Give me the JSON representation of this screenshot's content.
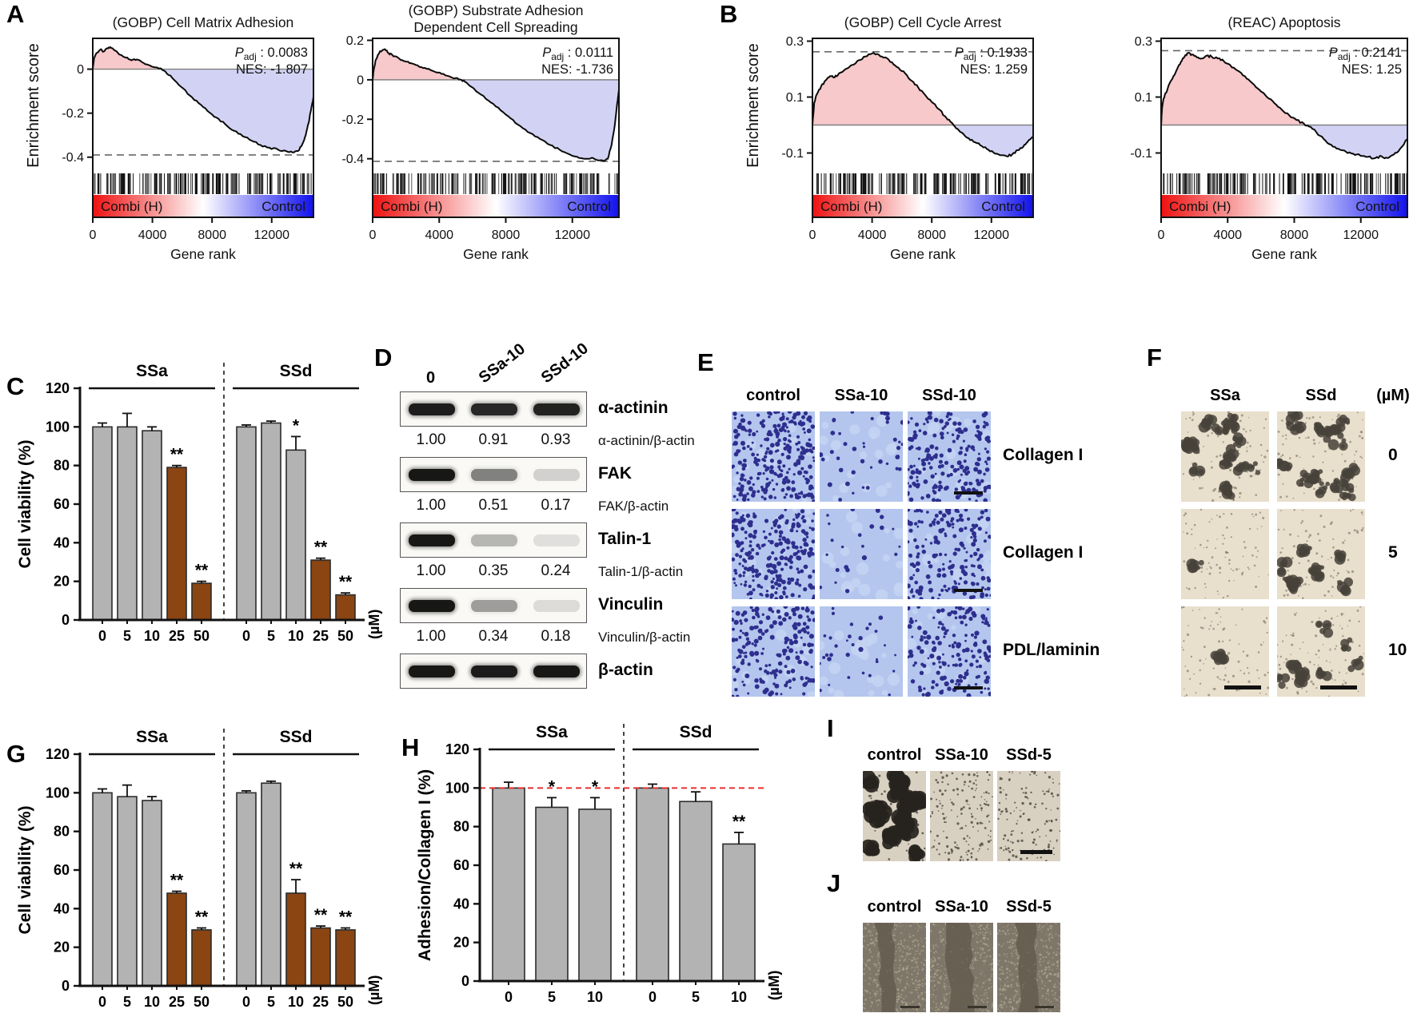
{
  "letters": {
    "A": "A",
    "B": "B",
    "C": "C",
    "D": "D",
    "E": "E",
    "F": "F",
    "G": "G",
    "H": "H",
    "I": "I",
    "J": "J"
  },
  "colors": {
    "gray_bar": "#b3b3b3",
    "brown_bar": "#8a4513",
    "bar_stroke": "#2b2b2b",
    "ref_red": "#e83030",
    "gsea_pos_fill": "#f7c9cb",
    "gsea_neg_fill": "#d2d3f4",
    "grad_red": "#ee1111",
    "grad_blue": "#1111ee",
    "e_bg": "#b4c6ee",
    "e_dot": "#2e2e8e",
    "f_bg": "#e8dfcc",
    "f_clump": "#46423a",
    "i_bg": "#d8d1c2",
    "i_blob": "#26231d",
    "i_speck": "#4a453b",
    "j_bg": "#7e7769",
    "j_band": "#665f52",
    "j_speck": "#b6ad98"
  },
  "gsea_common": {
    "ylabel": "Enrichment score",
    "xlabel": "Gene rank",
    "band_left": "Combi (H)",
    "band_right": "Control",
    "xticks": [
      "0",
      "4000",
      "8000",
      "12000"
    ],
    "xtick_values": [
      0,
      4000,
      8000,
      12000
    ],
    "xmax": 14800,
    "padj_label": "P",
    "padj_sub": "adj"
  },
  "chart_data": [
    {
      "id": "gsea-a1",
      "type": "line",
      "panel": "A",
      "title_lines": [
        "(GOBP) Cell Matrix Adhesion"
      ],
      "padj_value": " : 0.0083",
      "nes_text": "NES: -1.807",
      "has_ylabel": true,
      "seed": 11,
      "yticks": [
        0,
        -0.2,
        -0.4
      ],
      "ylim": [
        -0.47,
        0.14
      ],
      "dashed_y": -0.39,
      "curve": [
        [
          0,
          0
        ],
        [
          0.006,
          0.05
        ],
        [
          0.02,
          0.075
        ],
        [
          0.035,
          0.09
        ],
        [
          0.05,
          0.08
        ],
        [
          0.065,
          0.095
        ],
        [
          0.08,
          0.1
        ],
        [
          0.1,
          0.085
        ],
        [
          0.125,
          0.065
        ],
        [
          0.15,
          0.052
        ],
        [
          0.175,
          0.04
        ],
        [
          0.2,
          0.044
        ],
        [
          0.23,
          0.028
        ],
        [
          0.26,
          0.016
        ],
        [
          0.29,
          0.008
        ],
        [
          0.31,
          0.002
        ],
        [
          0.33,
          -0.012
        ],
        [
          0.36,
          -0.04
        ],
        [
          0.4,
          -0.08
        ],
        [
          0.44,
          -0.12
        ],
        [
          0.48,
          -0.155
        ],
        [
          0.52,
          -0.19
        ],
        [
          0.56,
          -0.22
        ],
        [
          0.6,
          -0.25
        ],
        [
          0.64,
          -0.28
        ],
        [
          0.68,
          -0.305
        ],
        [
          0.72,
          -0.325
        ],
        [
          0.76,
          -0.345
        ],
        [
          0.8,
          -0.357
        ],
        [
          0.84,
          -0.366
        ],
        [
          0.875,
          -0.372
        ],
        [
          0.905,
          -0.378
        ],
        [
          0.93,
          -0.372
        ],
        [
          0.95,
          -0.34
        ],
        [
          0.965,
          -0.3
        ],
        [
          0.978,
          -0.245
        ],
        [
          0.988,
          -0.19
        ],
        [
          1,
          -0.125
        ]
      ]
    },
    {
      "id": "gsea-a2",
      "type": "line",
      "panel": "A",
      "title_lines": [
        "(GOBP) Substrate Adhesion",
        "Dependent Cell Spreading"
      ],
      "padj_value": " : 0.0111",
      "nes_text": "NES: -1.736",
      "has_ylabel": false,
      "seed": 22,
      "yticks": [
        0.2,
        0,
        -0.2,
        -0.4
      ],
      "ylim": [
        -0.47,
        0.21
      ],
      "dashed_y": -0.413,
      "curve": [
        [
          0,
          0
        ],
        [
          0.004,
          0.045
        ],
        [
          0.012,
          0.1
        ],
        [
          0.03,
          0.145
        ],
        [
          0.05,
          0.155
        ],
        [
          0.065,
          0.135
        ],
        [
          0.08,
          0.125
        ],
        [
          0.1,
          0.115
        ],
        [
          0.12,
          0.1
        ],
        [
          0.14,
          0.092
        ],
        [
          0.16,
          0.082
        ],
        [
          0.19,
          0.065
        ],
        [
          0.22,
          0.055
        ],
        [
          0.25,
          0.042
        ],
        [
          0.28,
          0.03
        ],
        [
          0.31,
          0.018
        ],
        [
          0.335,
          0.008
        ],
        [
          0.355,
          0.002
        ],
        [
          0.375,
          -0.01
        ],
        [
          0.4,
          -0.035
        ],
        [
          0.44,
          -0.075
        ],
        [
          0.48,
          -0.115
        ],
        [
          0.52,
          -0.155
        ],
        [
          0.56,
          -0.195
        ],
        [
          0.6,
          -0.235
        ],
        [
          0.64,
          -0.27
        ],
        [
          0.68,
          -0.3
        ],
        [
          0.72,
          -0.33
        ],
        [
          0.76,
          -0.355
        ],
        [
          0.8,
          -0.378
        ],
        [
          0.83,
          -0.39
        ],
        [
          0.86,
          -0.4
        ],
        [
          0.89,
          -0.395
        ],
        [
          0.915,
          -0.408
        ],
        [
          0.94,
          -0.412
        ],
        [
          0.955,
          -0.4
        ],
        [
          0.97,
          -0.33
        ],
        [
          0.983,
          -0.23
        ],
        [
          0.993,
          -0.12
        ],
        [
          1,
          -0.05
        ]
      ]
    },
    {
      "id": "gsea-b1",
      "type": "line",
      "panel": "B",
      "title_lines": [
        "(GOBP) Cell Cycle Arrest"
      ],
      "padj_value": " : 0.1933",
      "nes_text": "NES: 1.259",
      "has_ylabel": true,
      "seed": 33,
      "yticks": [
        0.3,
        0.1,
        -0.1
      ],
      "ylim": [
        -0.17,
        0.31
      ],
      "dashed_y": 0.262,
      "curve": [
        [
          0,
          0
        ],
        [
          0.008,
          0.08
        ],
        [
          0.02,
          0.11
        ],
        [
          0.04,
          0.14
        ],
        [
          0.06,
          0.16
        ],
        [
          0.08,
          0.175
        ],
        [
          0.1,
          0.17
        ],
        [
          0.12,
          0.185
        ],
        [
          0.15,
          0.2
        ],
        [
          0.18,
          0.215
        ],
        [
          0.21,
          0.232
        ],
        [
          0.24,
          0.245
        ],
        [
          0.27,
          0.256
        ],
        [
          0.3,
          0.252
        ],
        [
          0.33,
          0.242
        ],
        [
          0.36,
          0.225
        ],
        [
          0.39,
          0.205
        ],
        [
          0.42,
          0.185
        ],
        [
          0.45,
          0.158
        ],
        [
          0.48,
          0.133
        ],
        [
          0.51,
          0.108
        ],
        [
          0.54,
          0.083
        ],
        [
          0.57,
          0.058
        ],
        [
          0.6,
          0.032
        ],
        [
          0.625,
          0.012
        ],
        [
          0.645,
          -0.005
        ],
        [
          0.67,
          -0.025
        ],
        [
          0.7,
          -0.045
        ],
        [
          0.73,
          -0.06
        ],
        [
          0.76,
          -0.072
        ],
        [
          0.79,
          -0.085
        ],
        [
          0.82,
          -0.098
        ],
        [
          0.85,
          -0.108
        ],
        [
          0.88,
          -0.112
        ],
        [
          0.905,
          -0.105
        ],
        [
          0.93,
          -0.09
        ],
        [
          0.955,
          -0.078
        ],
        [
          0.975,
          -0.06
        ],
        [
          1,
          -0.042
        ]
      ]
    },
    {
      "id": "gsea-b2",
      "type": "line",
      "panel": "B",
      "title_lines": [
        "(REAC) Apoptosis"
      ],
      "padj_value": " : 0.2141",
      "nes_text": "NES: 1.25",
      "has_ylabel": false,
      "seed": 44,
      "yticks": [
        0.3,
        0.1,
        -0.1
      ],
      "ylim": [
        -0.17,
        0.31
      ],
      "dashed_y": 0.266,
      "curve": [
        [
          0,
          0
        ],
        [
          0.004,
          0.06
        ],
        [
          0.01,
          0.095
        ],
        [
          0.02,
          0.115
        ],
        [
          0.035,
          0.15
        ],
        [
          0.05,
          0.175
        ],
        [
          0.065,
          0.2
        ],
        [
          0.08,
          0.225
        ],
        [
          0.095,
          0.245
        ],
        [
          0.11,
          0.258
        ],
        [
          0.125,
          0.252
        ],
        [
          0.145,
          0.242
        ],
        [
          0.165,
          0.238
        ],
        [
          0.185,
          0.248
        ],
        [
          0.205,
          0.245
        ],
        [
          0.23,
          0.238
        ],
        [
          0.255,
          0.228
        ],
        [
          0.28,
          0.215
        ],
        [
          0.31,
          0.195
        ],
        [
          0.34,
          0.175
        ],
        [
          0.37,
          0.15
        ],
        [
          0.4,
          0.125
        ],
        [
          0.43,
          0.1
        ],
        [
          0.46,
          0.078
        ],
        [
          0.49,
          0.055
        ],
        [
          0.52,
          0.035
        ],
        [
          0.55,
          0.018
        ],
        [
          0.58,
          0.005
        ],
        [
          0.6,
          -0.005
        ],
        [
          0.63,
          -0.025
        ],
        [
          0.66,
          -0.05
        ],
        [
          0.69,
          -0.07
        ],
        [
          0.72,
          -0.085
        ],
        [
          0.75,
          -0.095
        ],
        [
          0.78,
          -0.103
        ],
        [
          0.81,
          -0.11
        ],
        [
          0.84,
          -0.114
        ],
        [
          0.87,
          -0.118
        ],
        [
          0.895,
          -0.112
        ],
        [
          0.92,
          -0.118
        ],
        [
          0.945,
          -0.105
        ],
        [
          0.97,
          -0.085
        ],
        [
          1,
          -0.05
        ]
      ]
    },
    {
      "id": "bar-c",
      "type": "bar",
      "panel": "C",
      "ylabel": "Cell viability (%)",
      "ylim": [
        0,
        120
      ],
      "yticks": [
        0,
        20,
        40,
        60,
        80,
        100,
        120
      ],
      "unit": "(µM)",
      "bars_per_group": 5,
      "groups": [
        {
          "name": "SSa",
          "categories": [
            "0",
            "5",
            "10",
            "25",
            "50"
          ],
          "values": [
            100,
            100,
            98,
            79,
            19
          ],
          "errors": [
            2,
            7,
            2,
            1,
            1
          ],
          "sig": [
            "",
            "",
            "",
            "**",
            "**"
          ],
          "brown": [
            false,
            false,
            false,
            true,
            true
          ]
        },
        {
          "name": "SSd",
          "categories": [
            "0",
            "5",
            "10",
            "25",
            "50"
          ],
          "values": [
            100,
            102,
            88,
            31,
            13
          ],
          "errors": [
            1,
            1,
            7,
            1,
            1
          ],
          "sig": [
            "",
            "",
            "*",
            "**",
            "**"
          ],
          "brown": [
            false,
            false,
            false,
            true,
            true
          ]
        }
      ]
    },
    {
      "id": "bar-g",
      "type": "bar",
      "panel": "G",
      "ylabel": "Cell viability (%)",
      "ylim": [
        0,
        120
      ],
      "yticks": [
        0,
        20,
        40,
        60,
        80,
        100,
        120
      ],
      "unit": "(µM)",
      "bars_per_group": 5,
      "groups": [
        {
          "name": "SSa",
          "categories": [
            "0",
            "5",
            "10",
            "25",
            "50"
          ],
          "values": [
            100,
            98,
            96,
            48,
            29
          ],
          "errors": [
            2,
            6,
            2,
            1,
            1
          ],
          "sig": [
            "",
            "",
            "",
            "**",
            "**"
          ],
          "brown": [
            false,
            false,
            false,
            true,
            true
          ]
        },
        {
          "name": "SSd",
          "categories": [
            "0",
            "5",
            "10",
            "25",
            "50"
          ],
          "values": [
            100,
            105,
            48,
            30,
            29
          ],
          "errors": [
            1,
            1,
            7,
            1,
            1
          ],
          "sig": [
            "",
            "",
            "**",
            "**",
            "**"
          ],
          "brown": [
            false,
            false,
            true,
            true,
            true
          ]
        }
      ]
    },
    {
      "id": "bar-h",
      "type": "bar",
      "panel": "H",
      "ylabel": "Adhesion/Collagen I (%)",
      "ylim": [
        0,
        120
      ],
      "yticks": [
        0,
        20,
        40,
        60,
        80,
        100,
        120
      ],
      "unit": "(µM)",
      "bars_per_group": 3,
      "ref_line": 100,
      "groups": [
        {
          "name": "SSa",
          "categories": [
            "0",
            "5",
            "10"
          ],
          "values": [
            100,
            90,
            89
          ],
          "errors": [
            3,
            5,
            6
          ],
          "sig": [
            "",
            "*",
            "*"
          ],
          "brown": [
            false,
            false,
            false
          ]
        },
        {
          "name": "SSd",
          "categories": [
            "0",
            "5",
            "10"
          ],
          "values": [
            100,
            93,
            71
          ],
          "errors": [
            2,
            5,
            6
          ],
          "sig": [
            "",
            "",
            "**"
          ],
          "brown": [
            false,
            false,
            false
          ]
        }
      ]
    }
  ],
  "western_blot": {
    "lanes": [
      "0",
      "SSa-10",
      "SSd-10"
    ],
    "rows": [
      {
        "protein": "α-actinin",
        "intensities": [
          0.92,
          0.88,
          0.9
        ],
        "ratios": [
          "1.00",
          "0.91",
          "0.93"
        ],
        "ratio_label": "α-actinin/β-actin"
      },
      {
        "protein": "FAK",
        "intensities": [
          0.95,
          0.5,
          0.16
        ],
        "ratios": [
          "1.00",
          "0.51",
          "0.17"
        ],
        "ratio_label": "FAK/β-actin"
      },
      {
        "protein": "Talin-1",
        "intensities": [
          0.95,
          0.28,
          0.1
        ],
        "ratios": [
          "1.00",
          "0.35",
          "0.24"
        ],
        "ratio_label": "Talin-1/β-actin"
      },
      {
        "protein": "Vinculin",
        "intensities": [
          0.95,
          0.38,
          0.12
        ],
        "ratios": [
          "1.00",
          "0.34",
          "0.18"
        ],
        "ratio_label": "Vinculin/β-actin"
      },
      {
        "protein": "β-actin",
        "intensities": [
          0.95,
          0.93,
          0.95
        ],
        "ratios": null,
        "ratio_label": null
      }
    ]
  },
  "panel_e": {
    "columns": [
      "control",
      "SSa-10",
      "SSd-10"
    ],
    "row_labels": [
      "Collagen I",
      "Collagen I",
      "PDL/laminin"
    ],
    "dot_counts": [
      [
        260,
        40,
        210
      ],
      [
        240,
        22,
        185
      ],
      [
        190,
        32,
        168
      ]
    ],
    "scalebar_col": 2
  },
  "panel_f": {
    "columns": [
      "SSa",
      "SSd"
    ],
    "unit": "(µM)",
    "row_labels": [
      "0",
      "5",
      "10"
    ],
    "clump_counts": [
      [
        15,
        13
      ],
      [
        1,
        9
      ],
      [
        1,
        7
      ]
    ],
    "speckle_count": 85
  },
  "panel_i": {
    "columns": [
      "control",
      "SSa-10",
      "SSd-5"
    ],
    "types": [
      "blobs",
      "speckle",
      "speckle"
    ],
    "blob_count": 24,
    "speckle_counts": [
      60,
      150,
      130
    ],
    "scalebar_col": 2
  },
  "panel_j": {
    "columns": [
      "control",
      "SSa-10",
      "SSd-5"
    ],
    "band_centers": [
      0.38,
      0.47,
      0.47
    ],
    "band_widths": [
      20,
      30,
      23
    ],
    "speckle_count": 520
  }
}
